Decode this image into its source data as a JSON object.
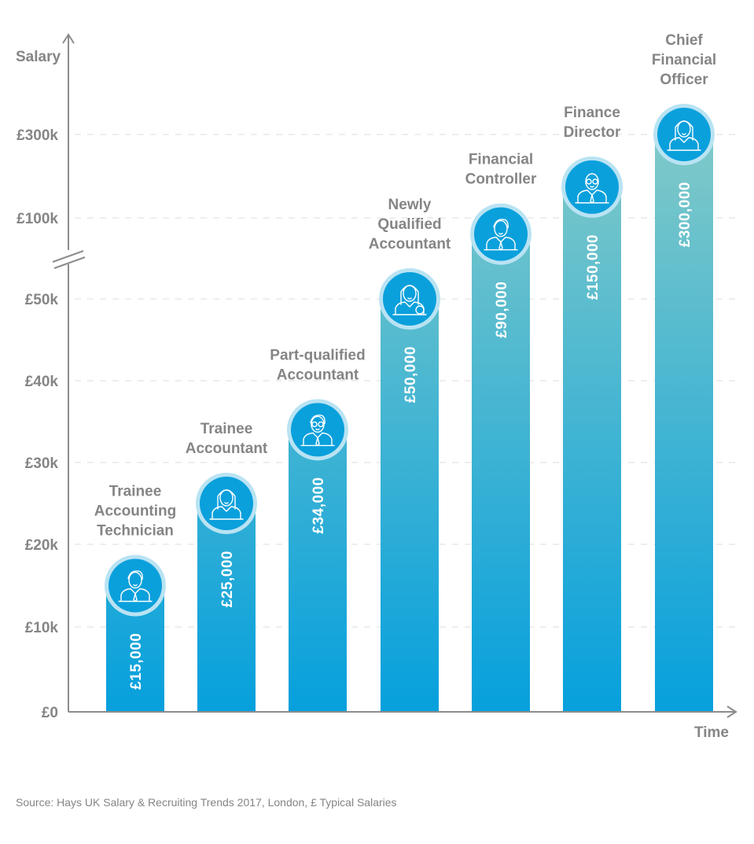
{
  "chart_data": {
    "type": "bar",
    "title": "",
    "xlabel": "Time",
    "ylabel": "Salary",
    "y_scale": "broken axis (linear to £50k, compressed above)",
    "y_ticks": [
      {
        "value": 0,
        "label": "£0"
      },
      {
        "value": 10000,
        "label": "£10k"
      },
      {
        "value": 20000,
        "label": "£20k"
      },
      {
        "value": 30000,
        "label": "£30k"
      },
      {
        "value": 40000,
        "label": "£40k"
      },
      {
        "value": 50000,
        "label": "£50k"
      },
      {
        "value": 100000,
        "label": "£100k"
      },
      {
        "value": 300000,
        "label": "£300k"
      }
    ],
    "grid": true,
    "categories": [
      [
        "Trainee",
        "Accounting",
        "Technician"
      ],
      [
        "Trainee",
        "Accountant"
      ],
      [
        "Part-qualified",
        "Accountant"
      ],
      [
        "Newly",
        "Qualified",
        "Accountant"
      ],
      [
        "Financial",
        "Controller"
      ],
      [
        "Finance",
        "Director"
      ],
      [
        "Chief",
        "Financial",
        "Officer"
      ]
    ],
    "values": [
      15000,
      25000,
      34000,
      50000,
      90000,
      150000,
      300000
    ],
    "data_labels": [
      "£15,000",
      "£25,000",
      "£34,000",
      "£50,000",
      "£90,000",
      "£150,000",
      "£300,000"
    ],
    "icons": [
      "man-icon",
      "woman-icon",
      "man-glasses-icon",
      "woman-award-icon",
      "man-icon",
      "bald-man-glasses-icon",
      "woman-icon"
    ],
    "colors": {
      "bar_top": "#80c9c8",
      "bar_bottom": "#06a0dd",
      "circle": "#0aa0dc",
      "circle_ring": "#b9e3f3",
      "text": "#858585",
      "axis": "#8c8c8c",
      "grid": "#dddddd"
    }
  },
  "source": "Source: Hays UK Salary & Recruiting Trends 2017, London, £ Typical Salaries"
}
